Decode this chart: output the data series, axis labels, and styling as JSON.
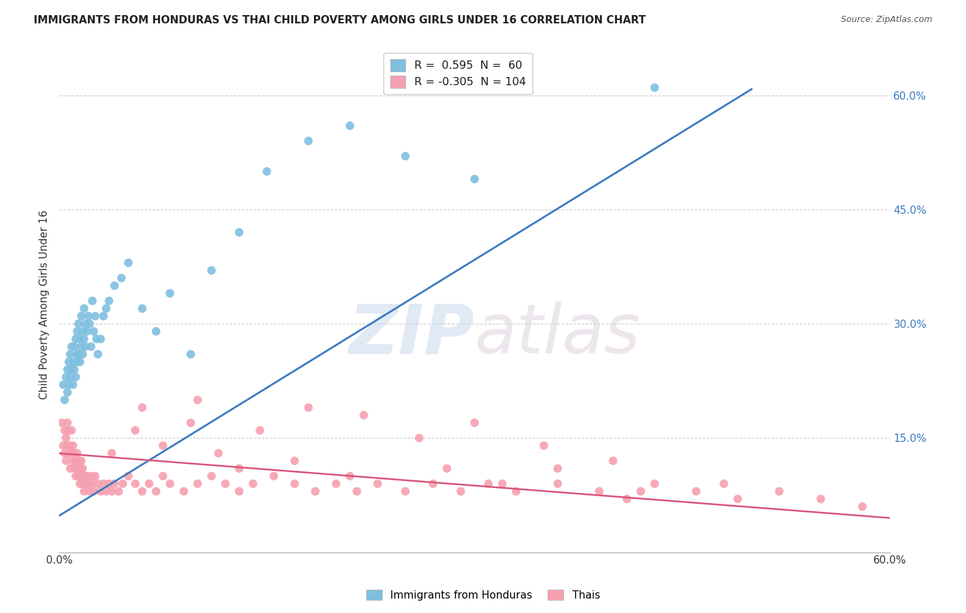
{
  "title": "IMMIGRANTS FROM HONDURAS VS THAI CHILD POVERTY AMONG GIRLS UNDER 16 CORRELATION CHART",
  "source": "Source: ZipAtlas.com",
  "ylabel": "Child Poverty Among Girls Under 16",
  "xlim": [
    0.0,
    0.6
  ],
  "ylim": [
    0.0,
    0.65
  ],
  "ytick_labels_right": [
    "60.0%",
    "45.0%",
    "30.0%",
    "15.0%"
  ],
  "ytick_positions_right": [
    0.6,
    0.45,
    0.3,
    0.15
  ],
  "background_color": "#ffffff",
  "blue_color": "#7fbfdf",
  "blue_line_color": "#3a7abf",
  "pink_color": "#f5a0b0",
  "pink_line_color": "#d9547a",
  "blue_scatter_x": [
    0.003,
    0.004,
    0.005,
    0.006,
    0.006,
    0.007,
    0.007,
    0.008,
    0.008,
    0.009,
    0.009,
    0.01,
    0.01,
    0.011,
    0.011,
    0.012,
    0.012,
    0.013,
    0.013,
    0.013,
    0.014,
    0.014,
    0.015,
    0.015,
    0.016,
    0.016,
    0.017,
    0.017,
    0.018,
    0.018,
    0.019,
    0.019,
    0.02,
    0.021,
    0.022,
    0.023,
    0.024,
    0.025,
    0.026,
    0.027,
    0.028,
    0.03,
    0.032,
    0.034,
    0.036,
    0.04,
    0.045,
    0.05,
    0.06,
    0.07,
    0.08,
    0.095,
    0.11,
    0.13,
    0.15,
    0.18,
    0.21,
    0.25,
    0.3,
    0.43
  ],
  "blue_scatter_y": [
    0.22,
    0.2,
    0.23,
    0.21,
    0.24,
    0.22,
    0.25,
    0.23,
    0.26,
    0.24,
    0.27,
    0.22,
    0.25,
    0.24,
    0.27,
    0.23,
    0.28,
    0.25,
    0.26,
    0.29,
    0.26,
    0.3,
    0.25,
    0.28,
    0.27,
    0.31,
    0.26,
    0.29,
    0.28,
    0.32,
    0.27,
    0.3,
    0.29,
    0.31,
    0.3,
    0.27,
    0.33,
    0.29,
    0.31,
    0.28,
    0.26,
    0.28,
    0.31,
    0.32,
    0.33,
    0.35,
    0.36,
    0.38,
    0.32,
    0.29,
    0.34,
    0.26,
    0.37,
    0.42,
    0.5,
    0.54,
    0.56,
    0.52,
    0.49,
    0.61
  ],
  "pink_scatter_x": [
    0.002,
    0.003,
    0.004,
    0.004,
    0.005,
    0.005,
    0.006,
    0.006,
    0.007,
    0.007,
    0.008,
    0.008,
    0.009,
    0.009,
    0.01,
    0.01,
    0.011,
    0.011,
    0.012,
    0.012,
    0.013,
    0.013,
    0.014,
    0.014,
    0.015,
    0.015,
    0.016,
    0.016,
    0.017,
    0.017,
    0.018,
    0.018,
    0.019,
    0.02,
    0.021,
    0.022,
    0.023,
    0.024,
    0.025,
    0.026,
    0.028,
    0.03,
    0.032,
    0.034,
    0.036,
    0.038,
    0.04,
    0.043,
    0.046,
    0.05,
    0.055,
    0.06,
    0.065,
    0.07,
    0.075,
    0.08,
    0.09,
    0.1,
    0.11,
    0.12,
    0.13,
    0.14,
    0.155,
    0.17,
    0.185,
    0.2,
    0.215,
    0.23,
    0.25,
    0.27,
    0.29,
    0.31,
    0.33,
    0.36,
    0.39,
    0.41,
    0.43,
    0.46,
    0.49,
    0.52,
    0.55,
    0.58,
    0.038,
    0.055,
    0.075,
    0.095,
    0.115,
    0.145,
    0.18,
    0.22,
    0.26,
    0.3,
    0.35,
    0.4,
    0.1,
    0.06,
    0.13,
    0.17,
    0.21,
    0.28,
    0.32,
    0.36,
    0.42,
    0.48
  ],
  "pink_scatter_y": [
    0.17,
    0.14,
    0.13,
    0.16,
    0.15,
    0.12,
    0.14,
    0.17,
    0.13,
    0.16,
    0.14,
    0.11,
    0.13,
    0.16,
    0.12,
    0.14,
    0.11,
    0.13,
    0.12,
    0.1,
    0.11,
    0.13,
    0.1,
    0.12,
    0.11,
    0.09,
    0.1,
    0.12,
    0.09,
    0.11,
    0.1,
    0.08,
    0.09,
    0.1,
    0.09,
    0.08,
    0.1,
    0.09,
    0.08,
    0.1,
    0.09,
    0.08,
    0.09,
    0.08,
    0.09,
    0.08,
    0.09,
    0.08,
    0.09,
    0.1,
    0.09,
    0.08,
    0.09,
    0.08,
    0.1,
    0.09,
    0.08,
    0.09,
    0.1,
    0.09,
    0.08,
    0.09,
    0.1,
    0.09,
    0.08,
    0.09,
    0.08,
    0.09,
    0.08,
    0.09,
    0.08,
    0.09,
    0.08,
    0.09,
    0.08,
    0.07,
    0.09,
    0.08,
    0.07,
    0.08,
    0.07,
    0.06,
    0.13,
    0.16,
    0.14,
    0.17,
    0.13,
    0.16,
    0.19,
    0.18,
    0.15,
    0.17,
    0.14,
    0.12,
    0.2,
    0.19,
    0.11,
    0.12,
    0.1,
    0.11,
    0.09,
    0.11,
    0.08,
    0.09
  ],
  "blue_line_x": [
    0.0,
    0.5
  ],
  "blue_line_y": [
    0.048,
    0.608
  ],
  "pink_line_x": [
    0.0,
    0.6
  ],
  "pink_line_y": [
    0.13,
    0.045
  ]
}
